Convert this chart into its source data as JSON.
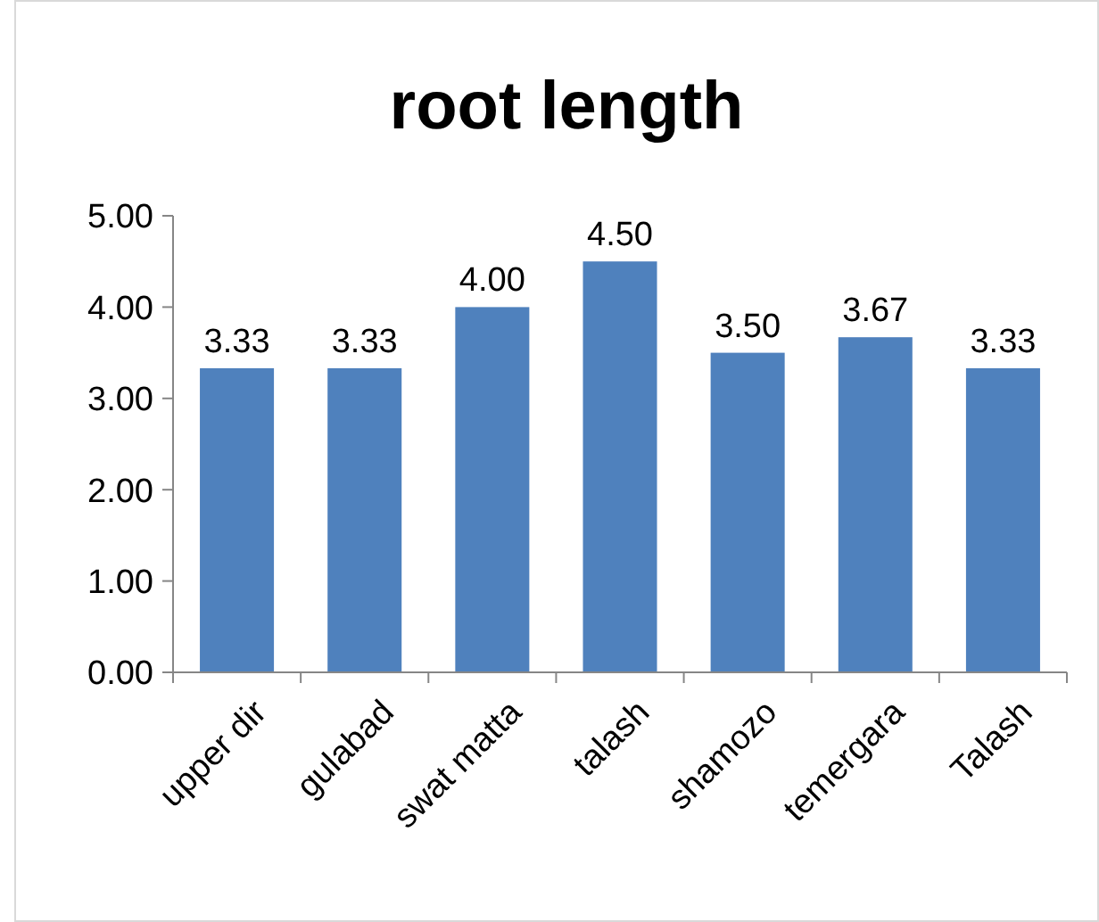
{
  "chart_data": {
    "type": "bar",
    "title": "root length",
    "categories": [
      "upper dir",
      "gulabad",
      "swat matta",
      "talash",
      "shamozo",
      "temergara",
      "Talash"
    ],
    "values": [
      3.33,
      3.33,
      4.0,
      4.5,
      3.5,
      3.67,
      3.33
    ],
    "value_labels": [
      "3.33",
      "3.33",
      "4.00",
      "4.50",
      "3.50",
      "3.67",
      "3.33"
    ],
    "color": "#4f81bd",
    "ylim": [
      0,
      5
    ],
    "yticks": [
      {
        "value": 0,
        "label": "0.00"
      },
      {
        "value": 1,
        "label": "1.00"
      },
      {
        "value": 2,
        "label": "2.00"
      },
      {
        "value": 3,
        "label": "3.00"
      },
      {
        "value": 4,
        "label": "4.00"
      },
      {
        "value": 5,
        "label": "5.00"
      }
    ],
    "grid": false
  }
}
